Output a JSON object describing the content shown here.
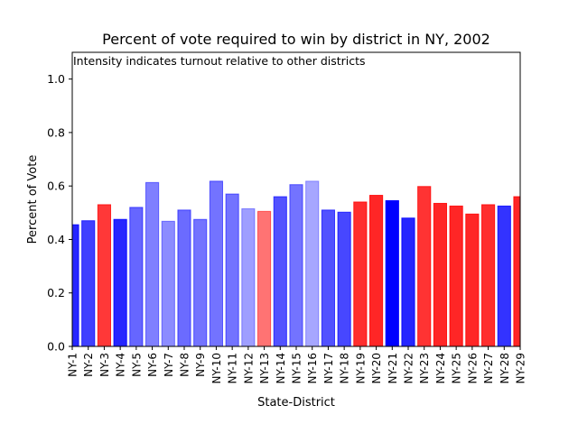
{
  "chart_data": {
    "type": "bar",
    "title": "Percent of vote required to win by district in NY, 2002",
    "annotation": "Intensity indicates turnout relative to other districts",
    "xlabel": "State-District",
    "ylabel": "Percent of Vote",
    "ylim": [
      0,
      1.1
    ],
    "yticks": [
      "0.0",
      "0.2",
      "0.4",
      "0.6",
      "0.8",
      "1.0"
    ],
    "grid": false,
    "colors": {
      "dem": "#0000ff",
      "rep": "#ff0000"
    },
    "bars": [
      {
        "category": "NY-1",
        "value": 0.455,
        "party": "dem",
        "intensity": 0.85
      },
      {
        "category": "NY-2",
        "value": 0.47,
        "party": "dem",
        "intensity": 0.75
      },
      {
        "category": "NY-3",
        "value": 0.53,
        "party": "rep",
        "intensity": 0.78
      },
      {
        "category": "NY-4",
        "value": 0.475,
        "party": "dem",
        "intensity": 0.85
      },
      {
        "category": "NY-5",
        "value": 0.52,
        "party": "dem",
        "intensity": 0.6
      },
      {
        "category": "NY-6",
        "value": 0.613,
        "party": "dem",
        "intensity": 0.5
      },
      {
        "category": "NY-7",
        "value": 0.468,
        "party": "dem",
        "intensity": 0.45
      },
      {
        "category": "NY-8",
        "value": 0.51,
        "party": "dem",
        "intensity": 0.58
      },
      {
        "category": "NY-9",
        "value": 0.475,
        "party": "dem",
        "intensity": 0.55
      },
      {
        "category": "NY-10",
        "value": 0.618,
        "party": "dem",
        "intensity": 0.55
      },
      {
        "category": "NY-11",
        "value": 0.57,
        "party": "dem",
        "intensity": 0.55
      },
      {
        "category": "NY-12",
        "value": 0.515,
        "party": "dem",
        "intensity": 0.38
      },
      {
        "category": "NY-13",
        "value": 0.505,
        "party": "rep",
        "intensity": 0.55
      },
      {
        "category": "NY-14",
        "value": 0.56,
        "party": "dem",
        "intensity": 0.68
      },
      {
        "category": "NY-15",
        "value": 0.605,
        "party": "dem",
        "intensity": 0.55
      },
      {
        "category": "NY-16",
        "value": 0.618,
        "party": "dem",
        "intensity": 0.35
      },
      {
        "category": "NY-17",
        "value": 0.51,
        "party": "dem",
        "intensity": 0.68
      },
      {
        "category": "NY-18",
        "value": 0.502,
        "party": "dem",
        "intensity": 0.72
      },
      {
        "category": "NY-19",
        "value": 0.54,
        "party": "rep",
        "intensity": 0.82
      },
      {
        "category": "NY-20",
        "value": 0.565,
        "party": "rep",
        "intensity": 0.85
      },
      {
        "category": "NY-21",
        "value": 0.545,
        "party": "dem",
        "intensity": 1.0
      },
      {
        "category": "NY-22",
        "value": 0.48,
        "party": "dem",
        "intensity": 0.85
      },
      {
        "category": "NY-23",
        "value": 0.598,
        "party": "rep",
        "intensity": 0.8
      },
      {
        "category": "NY-24",
        "value": 0.535,
        "party": "rep",
        "intensity": 0.85
      },
      {
        "category": "NY-25",
        "value": 0.525,
        "party": "rep",
        "intensity": 0.85
      },
      {
        "category": "NY-26",
        "value": 0.495,
        "party": "rep",
        "intensity": 0.85
      },
      {
        "category": "NY-27",
        "value": 0.53,
        "party": "rep",
        "intensity": 0.82
      },
      {
        "category": "NY-28",
        "value": 0.525,
        "party": "dem",
        "intensity": 0.8
      },
      {
        "category": "NY-29",
        "value": 0.56,
        "party": "rep",
        "intensity": 0.85
      }
    ]
  }
}
